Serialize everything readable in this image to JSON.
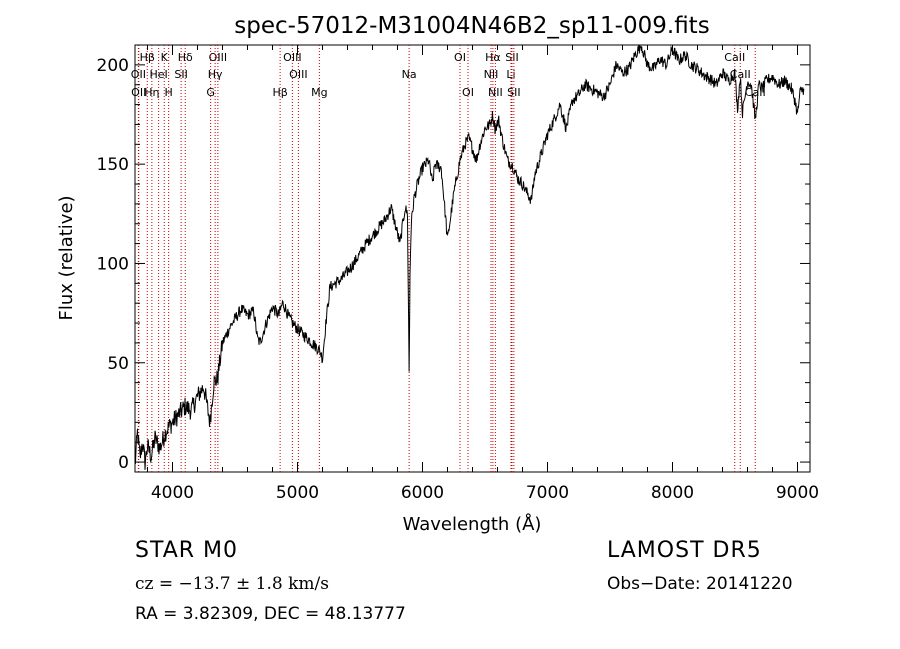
{
  "chart_data": {
    "type": "line",
    "title": "spec-57012-M31004N46B2_sp11-009.fits",
    "xlabel": "Wavelength (Å)",
    "ylabel": "Flux (relative)",
    "xlim": [
      3700,
      9100
    ],
    "ylim": [
      -5,
      210
    ],
    "xticks": [
      4000,
      5000,
      6000,
      7000,
      8000,
      9000
    ],
    "yticks": [
      0,
      50,
      100,
      150,
      200
    ],
    "grid": false,
    "line_color": "#000000",
    "marker_line_color": "#cc0000",
    "spectrum": {
      "x": [
        3700,
        3720,
        3740,
        3760,
        3780,
        3800,
        3830,
        3860,
        3900,
        3950,
        4000,
        4050,
        4100,
        4150,
        4200,
        4250,
        4300,
        4330,
        4360,
        4400,
        4430,
        4460,
        4500,
        4550,
        4600,
        4650,
        4680,
        4700,
        4750,
        4800,
        4850,
        4880,
        4900,
        4930,
        4960,
        5000,
        5050,
        5100,
        5150,
        5180,
        5200,
        5230,
        5260,
        5300,
        5350,
        5400,
        5450,
        5500,
        5550,
        5600,
        5650,
        5700,
        5750,
        5780,
        5820,
        5860,
        5880,
        5893,
        5900,
        5910,
        5930,
        5960,
        6000,
        6050,
        6080,
        6100,
        6150,
        6200,
        6250,
        6300,
        6340,
        6370,
        6400,
        6430,
        6460,
        6500,
        6540,
        6563,
        6580,
        6610,
        6640,
        6680,
        6710,
        6730,
        6760,
        6800,
        6840,
        6870,
        6900,
        6950,
        7000,
        7050,
        7100,
        7150,
        7200,
        7250,
        7300,
        7350,
        7400,
        7450,
        7500,
        7550,
        7600,
        7650,
        7700,
        7750,
        7800,
        7850,
        7900,
        7950,
        8000,
        8050,
        8100,
        8150,
        8200,
        8250,
        8300,
        8350,
        8400,
        8450,
        8498,
        8520,
        8542,
        8560,
        8600,
        8630,
        8662,
        8690,
        8720,
        8750,
        8800,
        8850,
        8900,
        8950,
        8980,
        9000,
        9020,
        9050
      ],
      "y": [
        -2,
        15,
        2,
        10,
        0,
        8,
        3,
        12,
        7,
        16,
        20,
        24,
        28,
        26,
        33,
        38,
        20,
        40,
        42,
        60,
        64,
        68,
        72,
        77,
        74,
        76,
        62,
        60,
        70,
        78,
        74,
        80,
        78,
        73,
        70,
        67,
        64,
        61,
        58,
        56,
        52,
        72,
        88,
        90,
        92,
        96,
        100,
        105,
        110,
        114,
        118,
        122,
        128,
        120,
        110,
        128,
        125,
        45,
        95,
        120,
        132,
        140,
        148,
        152,
        140,
        150,
        148,
        112,
        135,
        152,
        160,
        163,
        158,
        152,
        160,
        168,
        170,
        175,
        168,
        172,
        162,
        152,
        150,
        148,
        143,
        140,
        135,
        132,
        145,
        155,
        165,
        172,
        180,
        168,
        182,
        185,
        190,
        188,
        186,
        184,
        190,
        200,
        196,
        198,
        205,
        210,
        200,
        198,
        203,
        200,
        208,
        202,
        205,
        200,
        198,
        195,
        193,
        190,
        196,
        192,
        196,
        178,
        194,
        176,
        192,
        190,
        172,
        190,
        188,
        192,
        194,
        190,
        192,
        188,
        182,
        175,
        186,
        188
      ]
    },
    "line_markers": [
      {
        "label": "Hβ",
        "x": 3798,
        "row": 0
      },
      {
        "label": "OII",
        "x": 3727,
        "row": 1
      },
      {
        "label": "OII",
        "x": 3730,
        "row": 2
      },
      {
        "label": "Hη",
        "x": 3835,
        "row": 2
      },
      {
        "label": "HeI",
        "x": 3889,
        "row": 1
      },
      {
        "label": "K",
        "x": 3934,
        "row": 0
      },
      {
        "label": "H",
        "x": 3969,
        "row": 2
      },
      {
        "label": "Hδ",
        "x": 4102,
        "row": 0
      },
      {
        "label": "SII",
        "x": 4069,
        "row": 1
      },
      {
        "label": "OIII",
        "x": 4363,
        "row": 0
      },
      {
        "label": "Hγ",
        "x": 4341,
        "row": 1
      },
      {
        "label": "G",
        "x": 4305,
        "row": 2
      },
      {
        "label": "Hβ",
        "x": 4861,
        "row": 2
      },
      {
        "label": "OIII",
        "x": 4959,
        "row": 0
      },
      {
        "label": "OIII",
        "x": 5007,
        "row": 1
      },
      {
        "label": "Mg",
        "x": 5175,
        "row": 2
      },
      {
        "label": "Na",
        "x": 5893,
        "row": 1
      },
      {
        "label": "OI",
        "x": 6300,
        "row": 0
      },
      {
        "label": "OI",
        "x": 6364,
        "row": 2
      },
      {
        "label": "Hα",
        "x": 6563,
        "row": 0
      },
      {
        "label": "NII",
        "x": 6548,
        "row": 1
      },
      {
        "label": "NII",
        "x": 6583,
        "row": 2
      },
      {
        "label": "SII",
        "x": 6716,
        "row": 0
      },
      {
        "label": "Li",
        "x": 6708,
        "row": 1
      },
      {
        "label": "SII",
        "x": 6731,
        "row": 2
      },
      {
        "label": "CaII",
        "x": 8498,
        "row": 0
      },
      {
        "label": "CaII",
        "x": 8542,
        "row": 1
      },
      {
        "label": "CaII",
        "x": 8662,
        "row": 2
      }
    ]
  },
  "footer": {
    "class": "STAR    M0",
    "survey": "LAMOST  DR5",
    "cz": "cz = −13.7 ± 1.8 km/s",
    "obs_date": "Obs−Date: 20141220",
    "radec": "RA =    3.82309, DEC =  48.13777"
  }
}
